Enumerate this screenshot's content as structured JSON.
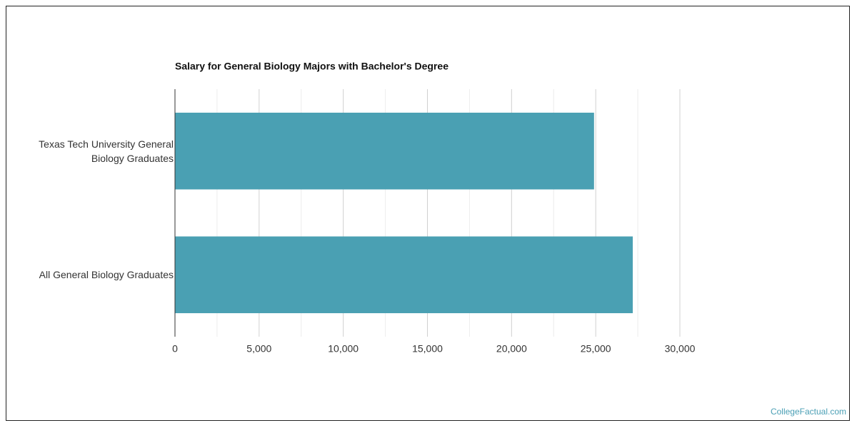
{
  "chart_data": {
    "type": "barh",
    "title": "Salary for General Biology Majors with Bachelor's Degree",
    "categories": [
      "Texas Tech University General Biology Graduates",
      "All General Biology Graduates"
    ],
    "values": [
      24900,
      27200
    ],
    "color": "#4aa0b3",
    "xlim": [
      0,
      30000
    ],
    "xticks": [
      0,
      {
        "value": 5000,
        "label": "5,000"
      },
      {
        "value": 10000,
        "label": "10,000"
      },
      {
        "value": 15000,
        "label": "15,000"
      },
      {
        "value": 20000,
        "label": "20,000"
      },
      {
        "value": 25000,
        "label": "25,000"
      },
      {
        "value": 30000,
        "label": "30,000"
      }
    ],
    "xminor_ticks": [
      2500,
      7500,
      12500,
      17500,
      22500,
      27500
    ],
    "grid": true
  },
  "footer": {
    "credit": "CollegeFactual.com"
  }
}
